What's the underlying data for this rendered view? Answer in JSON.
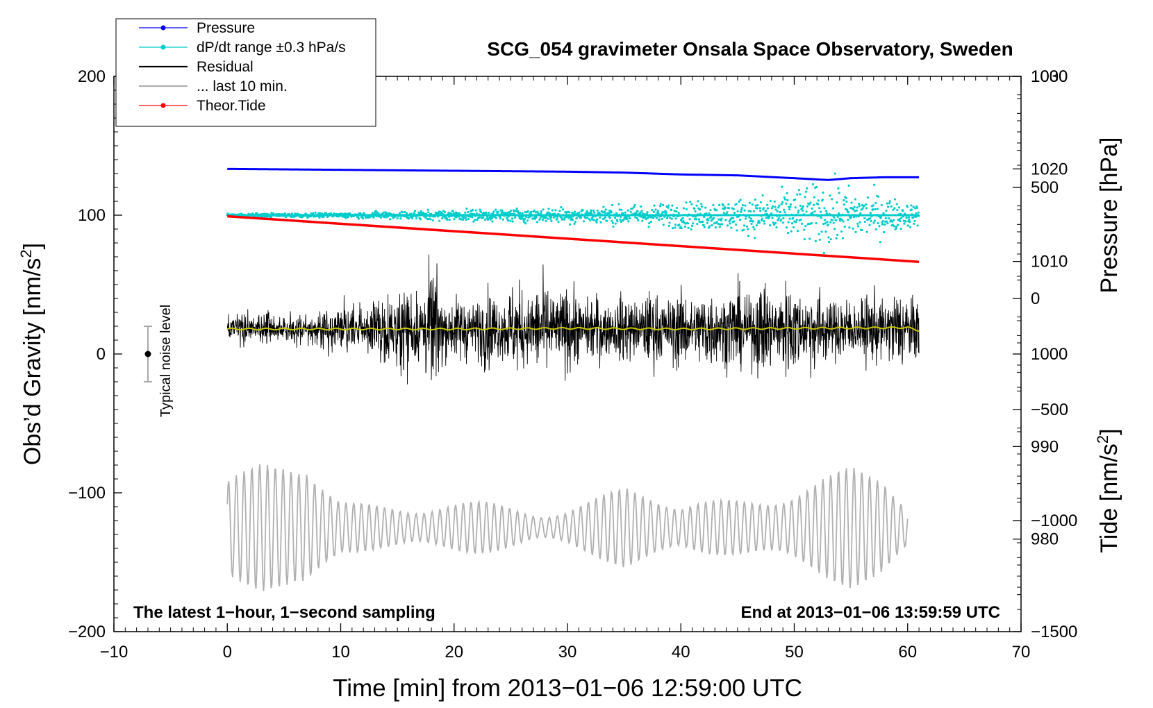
{
  "chart_data": {
    "type": "line",
    "title": "SCG_054 gravimeter Onsala Space Observatory, Sweden",
    "xlabel": "Time [min] from 2013−01−06 12:59:00 UTC",
    "xlim": [
      -10,
      70
    ],
    "x_ticks": [
      -10,
      0,
      10,
      20,
      30,
      40,
      50,
      60,
      70
    ],
    "x_tick_labels": [
      "−10",
      "0",
      "10",
      "20",
      "30",
      "40",
      "50",
      "60",
      "70"
    ],
    "y_left": {
      "label_main": "Obs’d Gravity [nm/s",
      "label_sup": "2",
      "label_end": "]",
      "lim": [
        -200,
        200
      ],
      "ticks": [
        200,
        100,
        0,
        -100,
        -200
      ],
      "tick_labels": [
        "200",
        "100",
        "0",
        "−100",
        "−200"
      ]
    },
    "y_right_pressure": {
      "label": "Pressure [hPa]",
      "lim": [
        970,
        1030
      ],
      "ticks": [
        1030,
        1020,
        1010,
        1000,
        990,
        980
      ],
      "tick_labels": [
        "1030",
        "1020",
        "1010",
        "1000",
        "990",
        "980"
      ]
    },
    "y_right_tide": {
      "label_main": "Tide [nm/s",
      "label_sup": "2",
      "label_end": "]",
      "lim": [
        -1500,
        1000
      ],
      "ticks": [
        1000,
        500,
        0,
        -500,
        -1000,
        -1500
      ],
      "tick_labels": [
        "1000",
        "500",
        "0",
        "−500",
        "−1000",
        "−1500"
      ]
    },
    "legend": {
      "placement": "top-left",
      "entries": [
        {
          "label": "Pressure",
          "color": "#0000ff",
          "marker": true
        },
        {
          "label": "dP/dt range ±0.3 hPa/s",
          "color": "#00cccc",
          "marker": true
        },
        {
          "label": "Residual",
          "color": "#000000",
          "marker": false
        },
        {
          "label": "... last 10 min.",
          "color": "#b0b0b0",
          "marker": false
        },
        {
          "label": "Theor.Tide",
          "color": "#ff0000",
          "marker": true
        }
      ]
    },
    "annotations": {
      "left_bottom": "The latest 1−hour, 1−second sampling",
      "right_bottom": "End at 2013−01−06 13:59:59 UTC",
      "noise_label": "Typical noise level",
      "noise_level": {
        "x": -7,
        "center": 0,
        "half_range": 20
      }
    },
    "series": [
      {
        "name": "Pressure",
        "axis": "pressure",
        "color": "#0000ff",
        "x": [
          0,
          10,
          20,
          30,
          35,
          40,
          45,
          50,
          53,
          55,
          58,
          61
        ],
        "y": [
          1020.0,
          1019.9,
          1019.8,
          1019.7,
          1019.6,
          1019.4,
          1019.3,
          1019.0,
          1018.8,
          1019.0,
          1019.1,
          1019.1
        ]
      },
      {
        "name": "dP/dt range ±0.3 hPa/s",
        "axis": "gravity",
        "color": "#00cccc",
        "x_range": [
          0,
          61
        ],
        "center": 100,
        "spread_profile": {
          "x": [
            0,
            10,
            17,
            25,
            35,
            45,
            53,
            57,
            61
          ],
          "y": [
            1,
            1.5,
            3,
            4,
            6,
            10,
            20,
            14,
            6
          ]
        }
      },
      {
        "name": "Residual",
        "axis": "gravity",
        "color": "#000000",
        "x_range": [
          0,
          61
        ],
        "center": 18,
        "envelope": {
          "x": [
            0,
            8,
            15,
            18,
            20,
            25,
            28,
            33,
            38,
            45,
            50,
            55,
            58,
            61
          ],
          "y": [
            15,
            18,
            35,
            55,
            30,
            40,
            45,
            30,
            35,
            40,
            45,
            30,
            35,
            40
          ]
        }
      },
      {
        "name": "Residual smoothed",
        "axis": "gravity",
        "color": "#c8c800",
        "x": [
          0,
          10,
          20,
          30,
          40,
          50,
          60,
          61
        ],
        "y": [
          18,
          18,
          18,
          18.5,
          18,
          18.5,
          19,
          17
        ]
      },
      {
        "name": "... last 10 min.",
        "axis": "gravity",
        "color": "#b0b0b0",
        "x_range": [
          0,
          60
        ],
        "center": -125,
        "amplitude_profile": {
          "x": [
            0,
            3,
            7,
            10,
            20,
            30,
            35,
            40,
            50,
            55,
            58,
            60
          ],
          "y": [
            35,
            45,
            45,
            20,
            15,
            15,
            30,
            15,
            30,
            40,
            35,
            20
          ]
        }
      },
      {
        "name": "Theor.Tide",
        "axis": "tide",
        "color": "#ff0000",
        "x": [
          0,
          61
        ],
        "y": [
          370,
          165
        ]
      }
    ]
  }
}
